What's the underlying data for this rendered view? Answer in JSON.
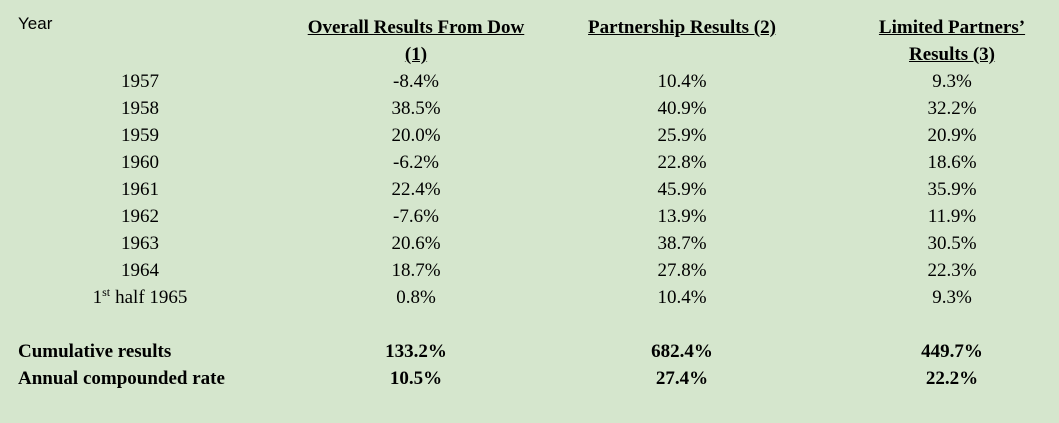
{
  "header": {
    "year": "Year",
    "columns": [
      "Overall Results From Dow (1)",
      "Partnership Results (2)",
      "Limited Partners’ Results (3)"
    ]
  },
  "rows": [
    {
      "year": "1957",
      "values": [
        "-8.4%",
        "10.4%",
        "9.3%"
      ]
    },
    {
      "year": "1958",
      "values": [
        "38.5%",
        "40.9%",
        "32.2%"
      ]
    },
    {
      "year": "1959",
      "values": [
        "20.0%",
        "25.9%",
        "20.9%"
      ]
    },
    {
      "year": "1960",
      "values": [
        "-6.2%",
        "22.8%",
        "18.6%"
      ]
    },
    {
      "year": "1961",
      "values": [
        "22.4%",
        "45.9%",
        "35.9%"
      ]
    },
    {
      "year": "1962",
      "values": [
        "-7.6%",
        "13.9%",
        "11.9%"
      ]
    },
    {
      "year": "1963",
      "values": [
        "20.6%",
        "38.7%",
        "30.5%"
      ]
    },
    {
      "year": "1964",
      "values": [
        "18.7%",
        "27.8%",
        "22.3%"
      ]
    },
    {
      "year": [
        "1",
        "st",
        "half 1965"
      ],
      "values": [
        "0.8%",
        "10.4%",
        "9.3%"
      ]
    }
  ],
  "summary": [
    {
      "label": "Cumulative results",
      "values": [
        "133.2%",
        "682.4%",
        "449.7%"
      ]
    },
    {
      "label": "Annual compounded rate",
      "values": [
        "10.5%",
        "27.4%",
        "22.2%"
      ]
    }
  ]
}
